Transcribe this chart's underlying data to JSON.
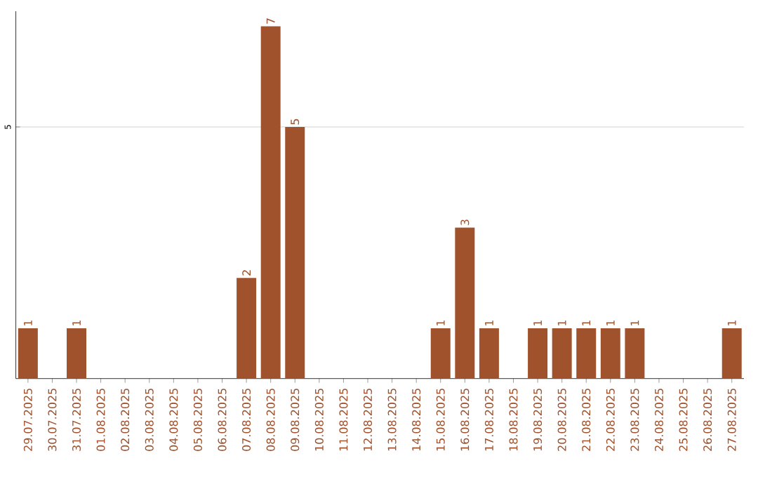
{
  "chart_data": {
    "type": "bar",
    "categories": [
      "29.07.2025",
      "30.07.2025",
      "31.07.2025",
      "01.08.2025",
      "02.08.2025",
      "03.08.2025",
      "04.08.2025",
      "05.08.2025",
      "06.08.2025",
      "07.08.2025",
      "08.08.2025",
      "09.08.2025",
      "10.08.2025",
      "11.08.2025",
      "12.08.2025",
      "13.08.2025",
      "14.08.2025",
      "15.08.2025",
      "16.08.2025",
      "17.08.2025",
      "18.08.2025",
      "19.08.2025",
      "20.08.2025",
      "21.08.2025",
      "22.08.2025",
      "23.08.2025",
      "24.08.2025",
      "25.08.2025",
      "26.08.2025",
      "27.08.2025"
    ],
    "values": [
      1,
      0,
      1,
      0,
      0,
      0,
      0,
      0,
      0,
      2,
      7,
      5,
      0,
      0,
      0,
      0,
      0,
      1,
      3,
      1,
      0,
      1,
      1,
      1,
      1,
      1,
      0,
      0,
      0,
      1
    ],
    "value_labels": [
      "1",
      null,
      "1",
      null,
      null,
      null,
      null,
      null,
      null,
      "2",
      "7",
      "5",
      null,
      null,
      null,
      null,
      null,
      "1",
      "3",
      "1",
      null,
      "1",
      "1",
      "1",
      "1",
      "1",
      null,
      null,
      null,
      "1"
    ],
    "color": "#a0522d",
    "ylim": [
      0,
      7.3
    ],
    "yticks": [
      5
    ],
    "grid": "y"
  }
}
